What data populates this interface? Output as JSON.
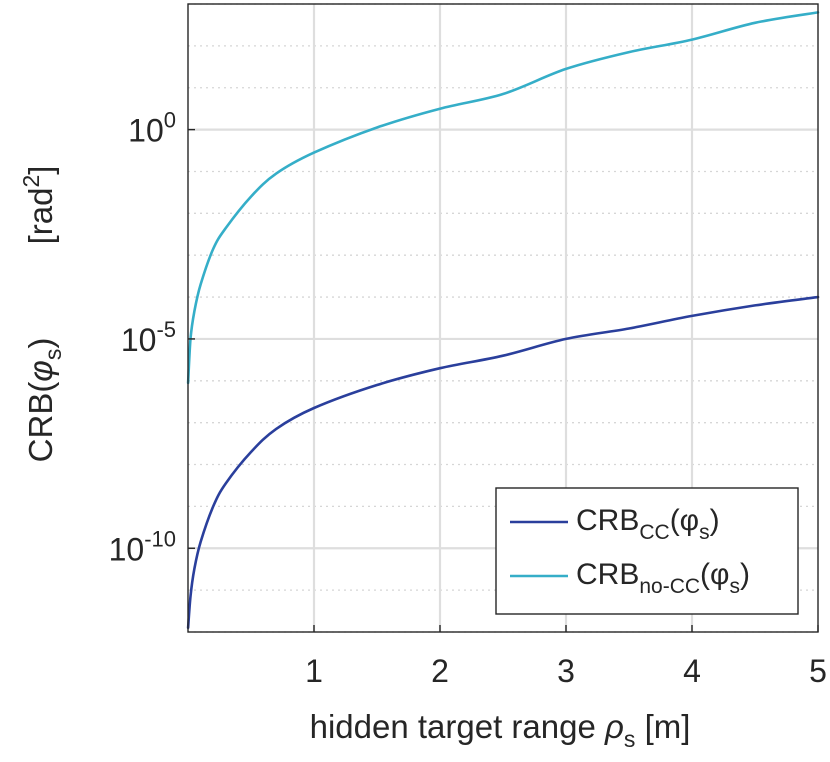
{
  "chart_data": {
    "type": "line",
    "title": "",
    "xlabel": "hidden target range",
    "xlabel_symbol": "ρ",
    "xlabel_symbol_sub": "s",
    "xlabel_unit": "[m]",
    "ylabel": "CRB(",
    "ylabel_symbol": "φ",
    "ylabel_symbol_sub": "s",
    "ylabel_close": ")",
    "ylabel_unit": "[rad",
    "ylabel_unit_sup": "2",
    "ylabel_unit_close": "]",
    "xlim": [
      0,
      5
    ],
    "ylim_log10": [
      -12,
      3
    ],
    "yscale": "log",
    "grid": true,
    "minor_grid": true,
    "legend_position": "bottom-right",
    "x_ticks": [
      {
        "value": 1,
        "label": "1"
      },
      {
        "value": 2,
        "label": "2"
      },
      {
        "value": 3,
        "label": "3"
      },
      {
        "value": 4,
        "label": "4"
      },
      {
        "value": 5,
        "label": "5"
      }
    ],
    "y_ticks": [
      {
        "exp": 0,
        "base": "10",
        "sup": "0"
      },
      {
        "exp": -5,
        "base": "10",
        "sup": "-5"
      },
      {
        "exp": -10,
        "base": "10",
        "sup": "-10"
      }
    ],
    "series": [
      {
        "name": "CRB",
        "name_sub": "CC",
        "name_arg": "(φ",
        "name_arg_sub": "s",
        "name_close": ")",
        "color": "#2a3f9c",
        "x": [
          0.001,
          0.02,
          0.05,
          0.1,
          0.2,
          0.3,
          0.5,
          0.7,
          1.0,
          1.5,
          2.0,
          2.5,
          3.0,
          3.5,
          4.0,
          4.5,
          5.0
        ],
        "log10_y": [
          -11.9,
          -11.15,
          -10.5,
          -9.85,
          -9.0,
          -8.45,
          -7.7,
          -7.15,
          -6.65,
          -6.1,
          -5.7,
          -5.4,
          -5.0,
          -4.75,
          -4.45,
          -4.2,
          -4.0
        ]
      },
      {
        "name": "CRB",
        "name_sub": "no-CC",
        "name_arg": "(φ",
        "name_arg_sub": "s",
        "name_close": ")",
        "color": "#35aec8",
        "x": [
          0.001,
          0.02,
          0.05,
          0.1,
          0.2,
          0.3,
          0.5,
          0.7,
          1.0,
          1.5,
          2.0,
          2.5,
          3.0,
          3.5,
          4.0,
          4.5,
          5.0
        ],
        "log10_y": [
          -6.05,
          -5.0,
          -4.35,
          -3.7,
          -2.85,
          -2.35,
          -1.6,
          -1.05,
          -0.55,
          0.05,
          0.5,
          0.85,
          1.45,
          1.85,
          2.15,
          2.55,
          2.8
        ]
      }
    ]
  }
}
